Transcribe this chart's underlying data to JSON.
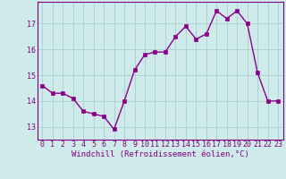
{
  "x": [
    0,
    1,
    2,
    3,
    4,
    5,
    6,
    7,
    8,
    9,
    10,
    11,
    12,
    13,
    14,
    15,
    16,
    17,
    18,
    19,
    20,
    21,
    22,
    23
  ],
  "y": [
    14.6,
    14.3,
    14.3,
    14.1,
    13.6,
    13.5,
    13.4,
    12.9,
    14.0,
    15.2,
    15.8,
    15.9,
    15.9,
    16.5,
    16.9,
    16.4,
    16.6,
    17.5,
    17.2,
    17.5,
    17.0,
    15.1,
    14.0,
    14.0
  ],
  "line_color": "#8B008B",
  "marker": "s",
  "markersize": 2.2,
  "linewidth": 1.0,
  "xlabel": "Windchill (Refroidissement éolien,°C)",
  "xlim": [
    -0.5,
    23.5
  ],
  "ylim": [
    12.5,
    17.85
  ],
  "yticks": [
    13,
    14,
    15,
    16,
    17
  ],
  "xticks": [
    0,
    1,
    2,
    3,
    4,
    5,
    6,
    7,
    8,
    9,
    10,
    11,
    12,
    13,
    14,
    15,
    16,
    17,
    18,
    19,
    20,
    21,
    22,
    23
  ],
  "bg_color": "#ceeaea",
  "grid_color": "#aacece",
  "xlabel_fontsize": 6.5,
  "tick_fontsize": 6.0,
  "font_color": "#800080"
}
